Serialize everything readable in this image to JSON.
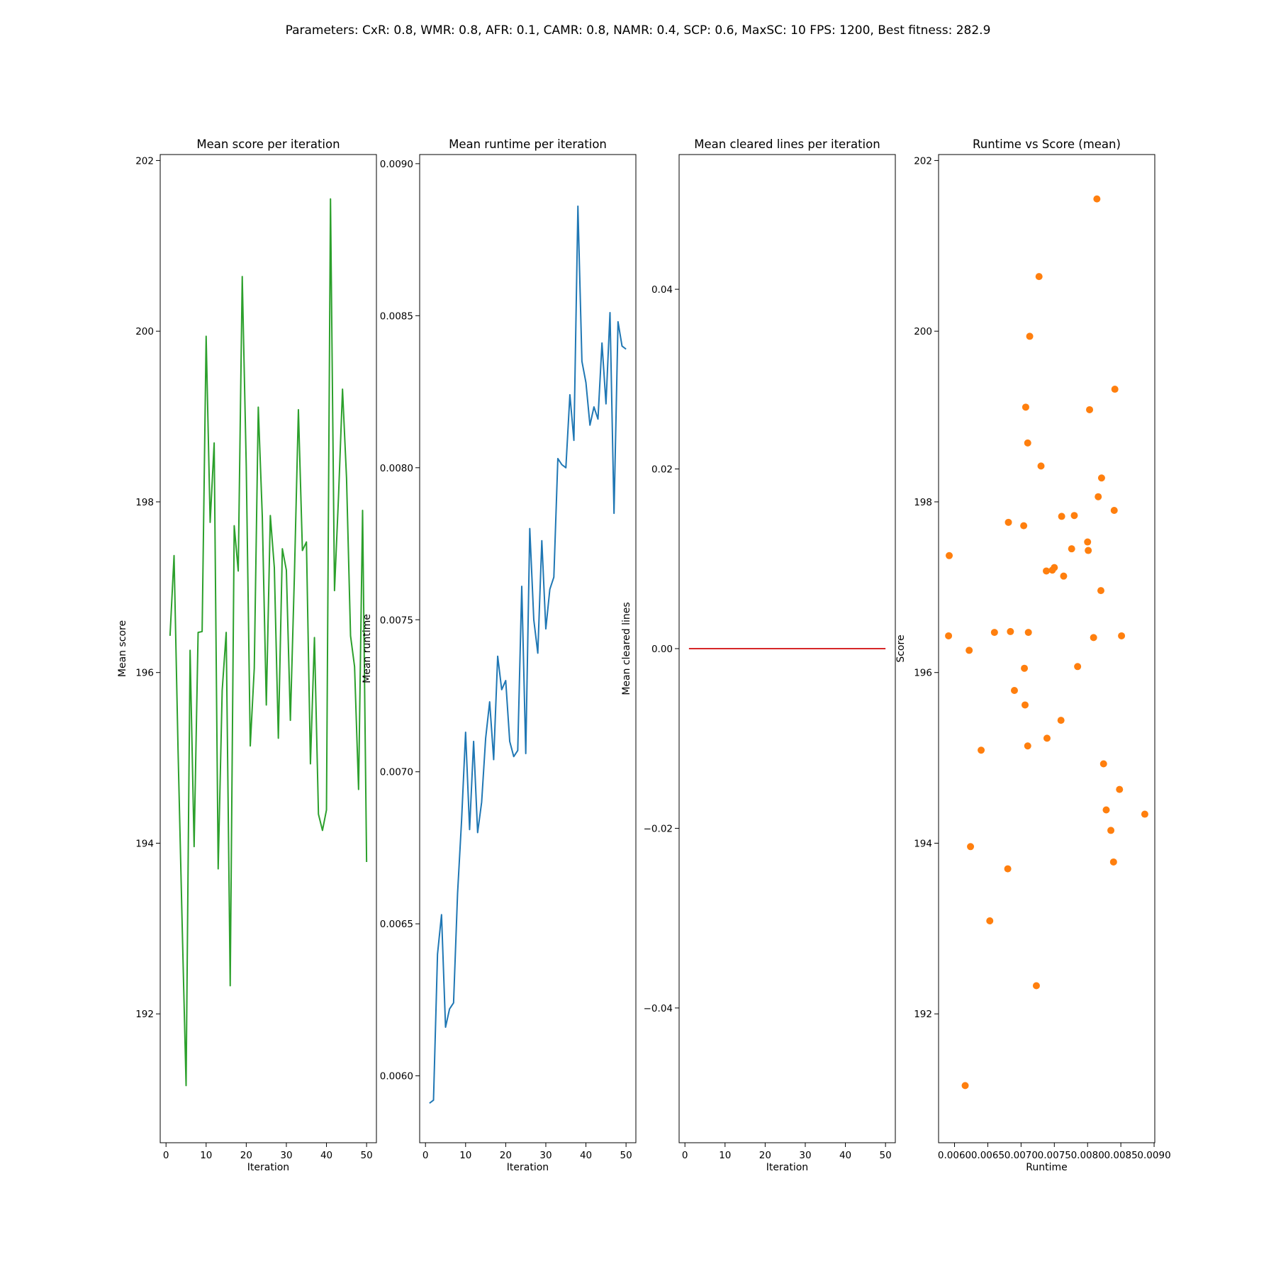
{
  "suptitle": "Parameters: CxR: 0.8, WMR: 0.8, AFR: 0.1, CAMR: 0.8, NAMR: 0.4, SCP: 0.6, MaxSC: 10  FPS: 1200, Best fitness: 282.9",
  "chart_data": [
    {
      "type": "line",
      "title": "Mean score per iteration",
      "xlabel": "Iteration",
      "ylabel": "Mean score",
      "color": "#2ca02c",
      "xlim": [
        -1.45,
        52.45
      ],
      "ylim": [
        190.49,
        202.07
      ],
      "xticks": [
        0,
        10,
        20,
        30,
        40,
        50
      ],
      "yticks": [
        192,
        194,
        196,
        198,
        200,
        202
      ],
      "x": [
        1,
        2,
        3,
        4,
        5,
        6,
        7,
        8,
        9,
        10,
        11,
        12,
        13,
        14,
        15,
        16,
        17,
        18,
        19,
        20,
        21,
        22,
        23,
        24,
        25,
        26,
        27,
        28,
        29,
        30,
        31,
        32,
        33,
        34,
        35,
        36,
        37,
        38,
        39,
        40,
        41,
        42,
        43,
        44,
        45,
        46,
        47,
        48,
        49,
        50
      ],
      "y": [
        196.43,
        197.37,
        195.09,
        193.09,
        191.16,
        196.26,
        193.96,
        196.47,
        196.48,
        199.94,
        197.76,
        198.69,
        193.7,
        195.79,
        196.47,
        192.33,
        197.72,
        197.19,
        200.64,
        198.42,
        195.14,
        196.05,
        199.11,
        197.83,
        195.62,
        197.84,
        197.23,
        195.23,
        197.45,
        197.2,
        195.44,
        197.13,
        199.08,
        197.43,
        197.53,
        194.93,
        196.41,
        194.34,
        194.15,
        194.39,
        201.55,
        196.96,
        198.06,
        199.32,
        198.28,
        196.43,
        196.07,
        194.63,
        197.9,
        193.78
      ]
    },
    {
      "type": "line",
      "title": "Mean runtime per iteration",
      "xlabel": "Iteration",
      "ylabel": "Mean runtime",
      "color": "#1f77b4",
      "xlim": [
        -1.45,
        52.45
      ],
      "ylim": [
        0.00578,
        0.00903
      ],
      "xticks": [
        0,
        10,
        20,
        30,
        40,
        50
      ],
      "yticks": [
        0.006,
        0.0065,
        0.007,
        0.0075,
        0.008,
        0.0085,
        0.009
      ],
      "ytick_labels": [
        "0.0060",
        "0.0065",
        "0.0070",
        "0.0075",
        "0.0080",
        "0.0085",
        "0.0090"
      ],
      "x": [
        1,
        2,
        3,
        4,
        5,
        6,
        7,
        8,
        9,
        10,
        11,
        12,
        13,
        14,
        15,
        16,
        17,
        18,
        19,
        20,
        21,
        22,
        23,
        24,
        25,
        26,
        27,
        28,
        29,
        30,
        31,
        32,
        33,
        34,
        35,
        36,
        37,
        38,
        39,
        40,
        41,
        42,
        43,
        44,
        45,
        46,
        47,
        48,
        49,
        50
      ],
      "y": [
        0.00591,
        0.00592,
        0.0064,
        0.00653,
        0.00616,
        0.00622,
        0.00624,
        0.0066,
        0.00684,
        0.00713,
        0.00681,
        0.0071,
        0.0068,
        0.0069,
        0.00711,
        0.00723,
        0.00704,
        0.00738,
        0.00727,
        0.0073,
        0.0071,
        0.00705,
        0.00707,
        0.00761,
        0.00706,
        0.0078,
        0.0075,
        0.00739,
        0.00776,
        0.00747,
        0.0076,
        0.00764,
        0.00803,
        0.00801,
        0.008,
        0.00824,
        0.00809,
        0.00886,
        0.00835,
        0.00828,
        0.00814,
        0.0082,
        0.00816,
        0.00841,
        0.00821,
        0.00851,
        0.00785,
        0.00848,
        0.0084,
        0.00839
      ]
    },
    {
      "type": "line",
      "title": "Mean cleared lines per iteration",
      "xlabel": "Iteration",
      "ylabel": "Mean cleared lines",
      "color": "#d62728",
      "xlim": [
        -1.45,
        52.45
      ],
      "ylim": [
        -0.055,
        0.055
      ],
      "xticks": [
        0,
        10,
        20,
        30,
        40,
        50
      ],
      "yticks": [
        -0.04,
        -0.02,
        0.0,
        0.02,
        0.04
      ],
      "ytick_labels": [
        "−0.04",
        "−0.02",
        "0.00",
        "0.02",
        "0.04"
      ],
      "x": [
        1,
        50
      ],
      "y": [
        0,
        0
      ]
    },
    {
      "type": "scatter",
      "title": "Runtime vs Score (mean)",
      "xlabel": "Runtime",
      "ylabel": "Score",
      "color": "#ff7f0e",
      "xlim": [
        0.00576,
        0.00901
      ],
      "ylim": [
        190.49,
        202.07
      ],
      "xticks": [
        0.006,
        0.0065,
        0.007,
        0.0075,
        0.008,
        0.0085,
        0.009
      ],
      "xtick_labels": [
        "0.0060",
        "0.0065",
        "0.0070",
        "0.0075",
        "0.0080",
        "0.0085",
        "0.0090"
      ],
      "yticks": [
        192,
        194,
        196,
        198,
        200,
        202
      ],
      "x": [
        0.00591,
        0.00592,
        0.0064,
        0.00653,
        0.00616,
        0.00622,
        0.00624,
        0.0066,
        0.00684,
        0.00713,
        0.00681,
        0.0071,
        0.0068,
        0.0069,
        0.00711,
        0.00723,
        0.00704,
        0.00738,
        0.00727,
        0.0073,
        0.0071,
        0.00705,
        0.00707,
        0.00761,
        0.00706,
        0.0078,
        0.0075,
        0.00739,
        0.00776,
        0.00747,
        0.0076,
        0.00764,
        0.00803,
        0.00801,
        0.008,
        0.00824,
        0.00809,
        0.00886,
        0.00835,
        0.00828,
        0.00814,
        0.0082,
        0.00816,
        0.00841,
        0.00821,
        0.00851,
        0.00785,
        0.00848,
        0.0084,
        0.00839
      ],
      "y": [
        196.43,
        197.37,
        195.09,
        193.09,
        191.16,
        196.26,
        193.96,
        196.47,
        196.48,
        199.94,
        197.76,
        198.69,
        193.7,
        195.79,
        196.47,
        192.33,
        197.72,
        197.19,
        200.64,
        198.42,
        195.14,
        196.05,
        199.11,
        197.83,
        195.62,
        197.84,
        197.23,
        195.23,
        197.45,
        197.2,
        195.44,
        197.13,
        199.08,
        197.43,
        197.53,
        194.93,
        196.41,
        194.34,
        194.15,
        194.39,
        201.55,
        196.96,
        198.06,
        199.32,
        198.28,
        196.43,
        196.07,
        194.63,
        197.9,
        193.78
      ]
    }
  ]
}
